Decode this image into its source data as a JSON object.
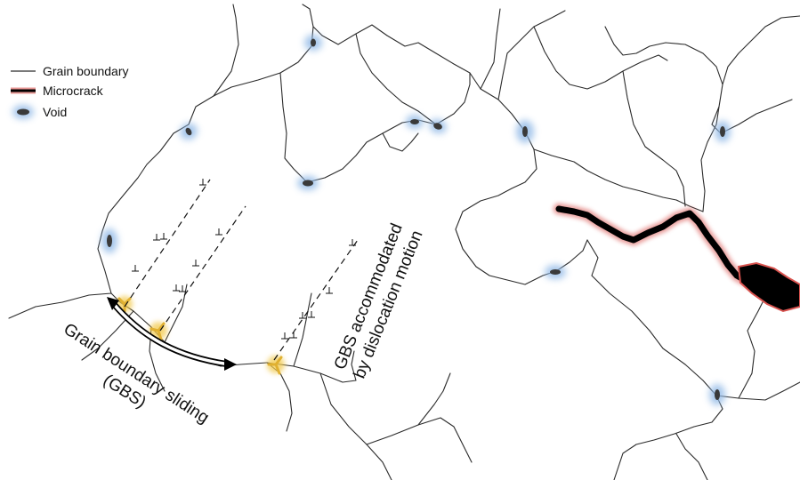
{
  "legend": {
    "grain_boundary": "Grain boundary",
    "microcrack": "Microcrack",
    "void": "Void"
  },
  "annotations": {
    "gbs_line1": "Grain boundary sliding",
    "gbs_line2": "(GBS)",
    "accommodated_line1": "GBS accommodated",
    "accommodated_line2": "by dislocation motion"
  },
  "colors": {
    "grain_boundary": "#2a2a2a",
    "microcrack": "#000000",
    "microcrack_glow": "#d9534f",
    "void": "#3a3a3a",
    "void_glow": "#8fb8e6",
    "triple_junction": "#f2c94c"
  },
  "icons": [
    "void-icon",
    "microcrack-icon",
    "triple-junction-marker",
    "dislocation-symbol",
    "gbs-arrow"
  ]
}
